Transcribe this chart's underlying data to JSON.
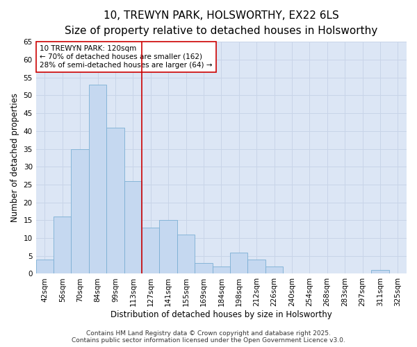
{
  "title1": "10, TREWYN PARK, HOLSWORTHY, EX22 6LS",
  "title2": "Size of property relative to detached houses in Holsworthy",
  "xlabel": "Distribution of detached houses by size in Holsworthy",
  "ylabel": "Number of detached properties",
  "categories": [
    "42sqm",
    "56sqm",
    "70sqm",
    "84sqm",
    "99sqm",
    "113sqm",
    "127sqm",
    "141sqm",
    "155sqm",
    "169sqm",
    "184sqm",
    "198sqm",
    "212sqm",
    "226sqm",
    "240sqm",
    "254sqm",
    "268sqm",
    "283sqm",
    "297sqm",
    "311sqm",
    "325sqm"
  ],
  "values": [
    4,
    16,
    35,
    53,
    41,
    26,
    13,
    15,
    11,
    3,
    2,
    6,
    4,
    2,
    0,
    0,
    0,
    0,
    0,
    1,
    0
  ],
  "bar_color": "#c5d8f0",
  "bar_edgecolor": "#7bafd4",
  "bar_linewidth": 0.6,
  "ylim": [
    0,
    65
  ],
  "yticks": [
    0,
    5,
    10,
    15,
    20,
    25,
    30,
    35,
    40,
    45,
    50,
    55,
    60,
    65
  ],
  "vline_color": "#cc0000",
  "annotation_title": "10 TREWYN PARK: 120sqm",
  "annotation_line1": "← 70% of detached houses are smaller (162)",
  "annotation_line2": "28% of semi-detached houses are larger (64) →",
  "annotation_box_facecolor": "#ffffff",
  "annotation_box_edgecolor": "#cc0000",
  "grid_color": "#c8d4e8",
  "plot_bg_color": "#dce6f5",
  "fig_bg_color": "#ffffff",
  "footer1": "Contains HM Land Registry data © Crown copyright and database right 2025.",
  "footer2": "Contains public sector information licensed under the Open Government Licence v3.0.",
  "title1_fontsize": 11,
  "title2_fontsize": 9.5,
  "axis_label_fontsize": 8.5,
  "tick_fontsize": 7.5,
  "annotation_fontsize": 7.5,
  "footer_fontsize": 6.5
}
